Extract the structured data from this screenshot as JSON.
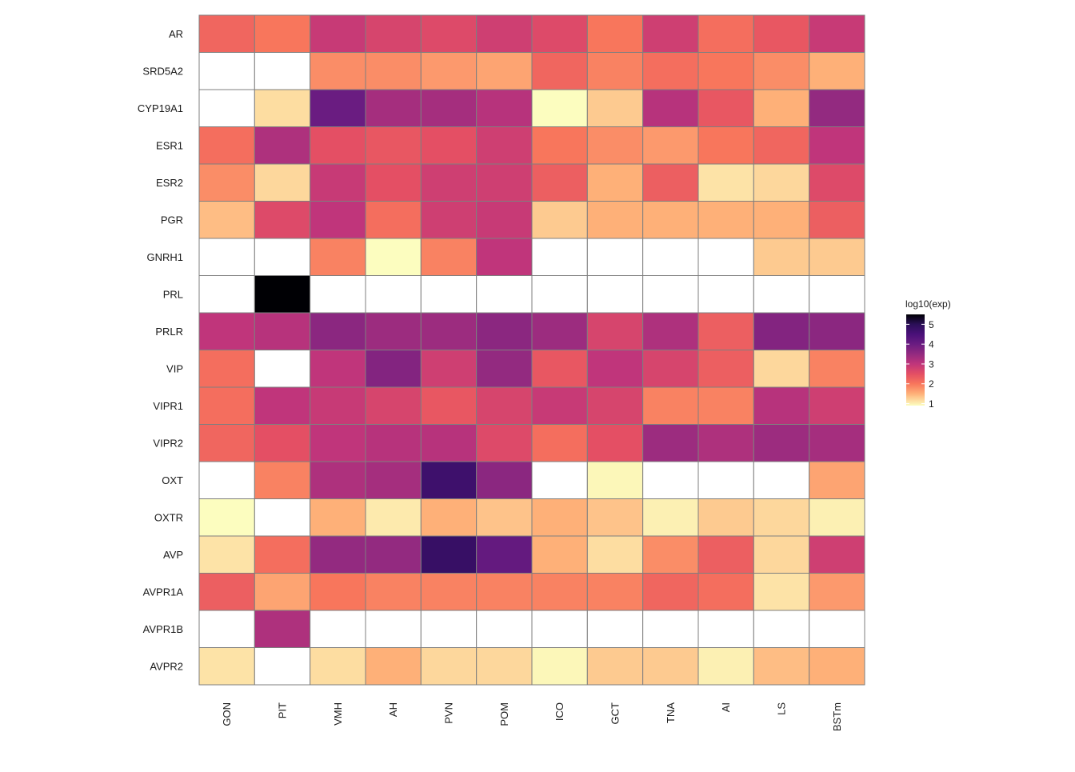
{
  "chart_data": {
    "type": "heatmap",
    "title": "",
    "xlabel": "",
    "ylabel": "",
    "x_categories": [
      "GON",
      "PIT",
      "VMH",
      "AH",
      "PVN",
      "POM",
      "ICO",
      "GCT",
      "TNA",
      "AI",
      "LS",
      "BSTm"
    ],
    "y_categories": [
      "AR",
      "SRD5A2",
      "CYP19A1",
      "ESR1",
      "ESR2",
      "PGR",
      "GNRH1",
      "PRL",
      "PRLR",
      "VIP",
      "VIPR1",
      "VIPR2",
      "OXT",
      "OXTR",
      "AVP",
      "AVPR1A",
      "AVPR1B",
      "AVPR2"
    ],
    "values": [
      [
        2.2,
        2.0,
        2.9,
        2.7,
        2.6,
        2.8,
        2.6,
        2.0,
        2.8,
        2.1,
        2.4,
        2.9
      ],
      [
        null,
        null,
        1.8,
        1.8,
        1.7,
        1.6,
        2.2,
        1.9,
        2.1,
        2.0,
        1.8,
        1.5
      ],
      [
        null,
        1.15,
        4.0,
        3.3,
        3.3,
        3.1,
        0.9,
        1.3,
        3.1,
        2.4,
        1.5,
        3.5
      ],
      [
        2.1,
        3.2,
        2.5,
        2.4,
        2.5,
        2.8,
        2.0,
        1.8,
        1.7,
        2.0,
        2.2,
        3.0
      ],
      [
        1.8,
        1.2,
        2.9,
        2.5,
        2.8,
        2.8,
        2.3,
        1.5,
        2.3,
        1.1,
        1.2,
        2.6
      ],
      [
        1.4,
        2.6,
        3.0,
        2.1,
        2.8,
        2.9,
        1.3,
        1.5,
        1.5,
        1.5,
        1.5,
        2.3
      ],
      [
        null,
        null,
        1.9,
        0.9,
        1.9,
        3.0,
        null,
        null,
        null,
        null,
        1.3,
        1.3
      ],
      [
        null,
        5.5,
        null,
        null,
        null,
        null,
        null,
        null,
        null,
        null,
        null,
        null
      ],
      [
        3.0,
        3.1,
        3.6,
        3.4,
        3.4,
        3.6,
        3.4,
        2.7,
        3.2,
        2.3,
        3.7,
        3.6
      ],
      [
        2.1,
        null,
        3.0,
        3.7,
        2.8,
        3.5,
        2.4,
        3.0,
        2.7,
        2.3,
        1.2,
        1.9
      ],
      [
        2.1,
        3.0,
        2.9,
        2.7,
        2.4,
        2.7,
        2.9,
        2.7,
        1.9,
        1.9,
        3.1,
        2.8
      ],
      [
        2.2,
        2.5,
        3.0,
        3.1,
        3.1,
        2.6,
        2.1,
        2.5,
        3.4,
        3.2,
        3.4,
        3.3
      ],
      [
        null,
        1.9,
        3.2,
        3.3,
        4.7,
        3.6,
        null,
        0.95,
        null,
        null,
        null,
        1.6
      ],
      [
        0.9,
        null,
        1.5,
        1.05,
        1.5,
        1.35,
        1.5,
        1.35,
        1.0,
        1.3,
        1.2,
        1.0
      ],
      [
        1.1,
        2.1,
        3.5,
        3.5,
        4.8,
        4.1,
        1.5,
        1.15,
        1.8,
        2.3,
        1.2,
        2.8
      ],
      [
        2.3,
        1.6,
        2.0,
        1.9,
        1.9,
        1.9,
        1.9,
        1.9,
        2.2,
        2.1,
        1.1,
        1.7
      ],
      [
        null,
        3.2,
        null,
        null,
        null,
        null,
        null,
        null,
        null,
        null,
        null,
        null
      ],
      [
        1.1,
        null,
        1.15,
        1.5,
        1.2,
        1.2,
        0.95,
        1.3,
        1.3,
        1.0,
        1.4,
        1.5
      ]
    ],
    "missing_color": "#ffffff",
    "grid_color": "#7f7f7f",
    "colorscale": "magma (reversed)",
    "color_stops": [
      [
        0.9,
        "#fcfdbf"
      ],
      [
        1.5,
        "#feb078"
      ],
      [
        2.0,
        "#f8765c"
      ],
      [
        2.5,
        "#e44f64"
      ],
      [
        3.0,
        "#c0357b"
      ],
      [
        3.5,
        "#932a80"
      ],
      [
        4.0,
        "#6a1c81"
      ],
      [
        4.5,
        "#4a1079"
      ],
      [
        5.0,
        "#2b0f58"
      ],
      [
        5.5,
        "#000004"
      ]
    ],
    "legend": {
      "title": "log10(exp)",
      "ticks": [
        1,
        2,
        3,
        4,
        5
      ],
      "range": [
        0.9,
        5.5
      ],
      "position": "right"
    }
  }
}
